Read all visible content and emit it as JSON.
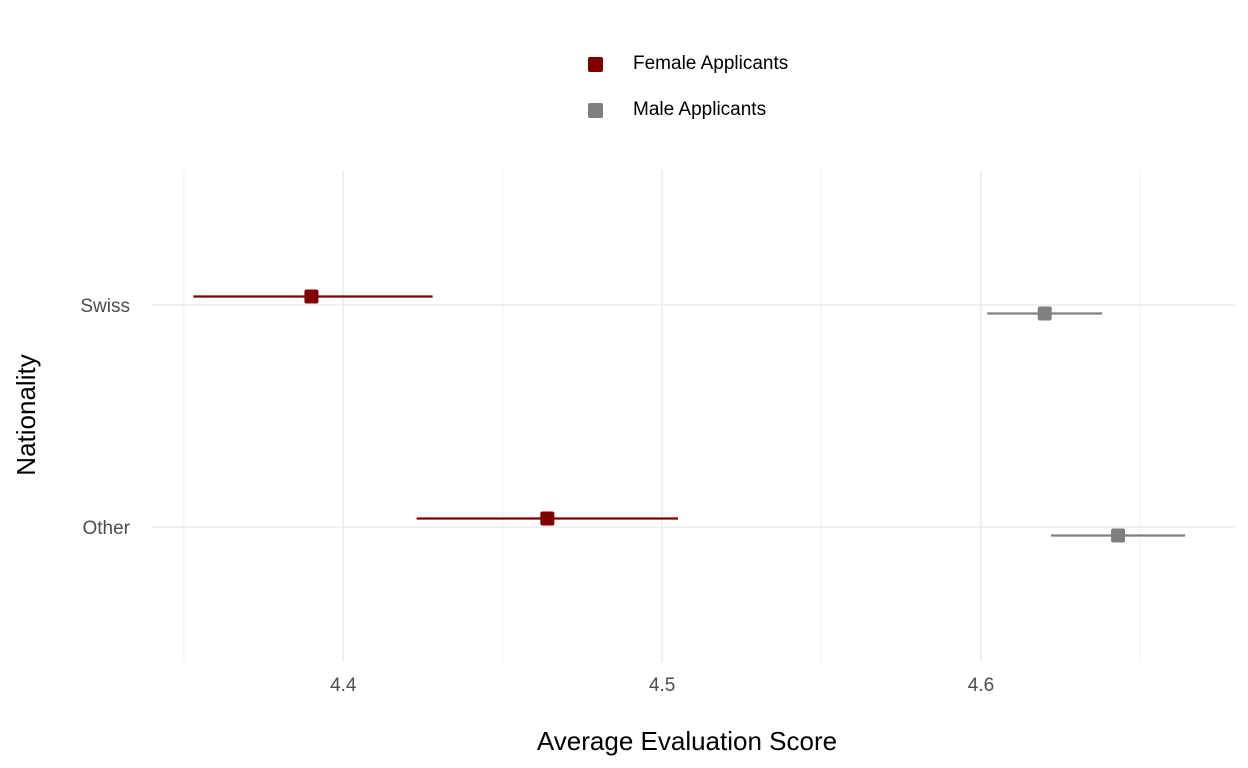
{
  "colors": {
    "female": "#7f0000",
    "male": "#7f7f7f",
    "grid_major": "#ebebeb",
    "grid_minor": "#f3f3f3"
  },
  "legend": {
    "position": "top",
    "items": [
      {
        "label": "Female Applicants",
        "color": "#7f0000"
      },
      {
        "label": "Male Applicants",
        "color": "#7f7f7f"
      }
    ]
  },
  "chart_data": {
    "type": "scatter",
    "orientation": "horizontal",
    "title": "",
    "xlabel": "Average Evaluation Score",
    "ylabel": "Nationality",
    "categories": [
      "Swiss",
      "Other"
    ],
    "xlim": [
      4.34,
      4.68
    ],
    "xticks": [
      4.4,
      4.5,
      4.6
    ],
    "xtick_labels": [
      "4.4",
      "4.5",
      "4.6"
    ],
    "grid": true,
    "series": [
      {
        "name": "Female Applicants",
        "color": "#7f0000",
        "points": [
          {
            "category": "Swiss",
            "mean": 4.39,
            "lower": 4.353,
            "upper": 4.428
          },
          {
            "category": "Other",
            "mean": 4.464,
            "lower": 4.423,
            "upper": 4.505
          }
        ]
      },
      {
        "name": "Male Applicants",
        "color": "#7f7f7f",
        "points": [
          {
            "category": "Swiss",
            "mean": 4.62,
            "lower": 4.602,
            "upper": 4.638
          },
          {
            "category": "Other",
            "mean": 4.643,
            "lower": 4.622,
            "upper": 4.664
          }
        ]
      }
    ]
  }
}
